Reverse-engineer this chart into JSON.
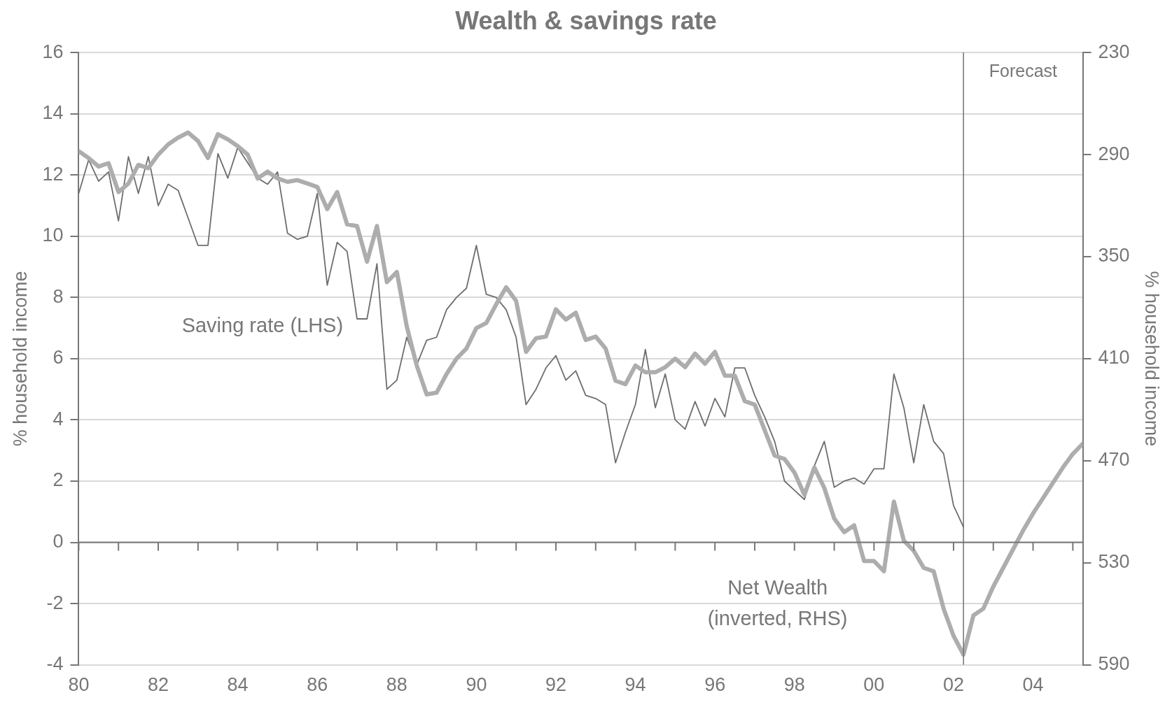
{
  "chart_data": {
    "type": "line",
    "title": "Wealth & savings rate",
    "ylabel": "% household income",
    "y2label": "% household income",
    "x": [
      1980,
      1980.25,
      1980.5,
      1980.75,
      1981,
      1981.25,
      1981.5,
      1981.75,
      1982,
      1982.25,
      1982.5,
      1982.75,
      1983,
      1983.25,
      1983.5,
      1983.75,
      1984,
      1984.25,
      1984.5,
      1984.75,
      1985,
      1985.25,
      1985.5,
      1985.75,
      1986,
      1986.25,
      1986.5,
      1986.75,
      1987,
      1987.25,
      1987.5,
      1987.75,
      1988,
      1988.25,
      1988.5,
      1988.75,
      1989,
      1989.25,
      1989.5,
      1989.75,
      1990,
      1990.25,
      1990.5,
      1990.75,
      1991,
      1991.25,
      1991.5,
      1991.75,
      1992,
      1992.25,
      1992.5,
      1992.75,
      1993,
      1993.25,
      1993.5,
      1993.75,
      1994,
      1994.25,
      1994.5,
      1994.75,
      1995,
      1995.25,
      1995.5,
      1995.75,
      1996,
      1996.25,
      1996.5,
      1996.75,
      1997,
      1997.25,
      1997.5,
      1997.75,
      1998,
      1998.25,
      1998.5,
      1998.75,
      1999,
      1999.25,
      1999.5,
      1999.75,
      2000,
      2000.25,
      2000.5,
      2000.75,
      2001,
      2001.25,
      2001.5,
      2001.75,
      2002,
      2002.25,
      2002.5,
      2002.75,
      2003,
      2003.25,
      2003.5,
      2003.75,
      2004,
      2004.25,
      2004.5,
      2004.75,
      2005,
      2005.25
    ],
    "series": [
      {
        "name": "Saving rate (LHS)",
        "color": "#6e6e6e",
        "values": [
          11.4,
          12.5,
          11.8,
          12.1,
          10.5,
          12.6,
          11.4,
          12.6,
          11.0,
          11.7,
          11.5,
          10.6,
          9.7,
          9.7,
          12.7,
          11.9,
          12.9,
          12.4,
          11.9,
          11.7,
          12.1,
          10.1,
          9.9,
          10.0,
          11.4,
          8.4,
          9.8,
          9.5,
          7.3,
          7.3,
          9.1,
          5.0,
          5.3,
          6.7,
          5.8,
          6.6,
          6.7,
          7.6,
          8.0,
          8.3,
          9.7,
          8.1,
          8.0,
          7.6,
          6.7,
          4.5,
          5.0,
          5.7,
          6.1,
          5.3,
          5.6,
          4.8,
          4.7,
          4.5,
          2.6,
          3.6,
          4.5,
          6.3,
          4.4,
          5.5,
          4.0,
          3.7,
          4.6,
          3.8,
          4.7,
          4.1,
          5.7,
          5.7,
          4.8,
          4.1,
          3.3,
          2.0,
          1.7,
          1.4,
          2.5,
          3.3,
          1.8,
          2.0,
          2.1,
          1.9,
          2.4,
          2.4,
          5.5,
          4.4,
          2.6,
          4.5,
          3.3,
          2.9,
          1.2,
          0.5,
          null,
          null,
          null,
          null,
          null,
          null,
          null,
          null,
          null,
          null,
          null,
          null
        ]
      },
      {
        "name": "Net Wealth (inverted, RHS)",
        "color": "#adadad",
        "axis": "y2",
        "values": [
          288,
          292,
          297,
          295,
          312,
          307,
          296,
          298,
          290,
          284,
          280,
          277,
          282,
          292,
          278,
          281,
          285,
          290,
          304,
          300,
          304,
          306,
          305,
          307,
          309,
          322,
          312,
          331,
          332,
          353,
          332,
          365,
          359,
          391,
          414,
          431,
          430,
          419,
          410,
          404,
          392,
          389,
          378,
          368,
          376,
          406,
          398,
          397,
          381,
          387,
          383,
          399,
          397,
          404,
          423,
          425,
          414,
          418,
          418,
          415,
          410,
          415,
          407,
          413,
          406,
          420,
          420,
          435,
          437,
          452,
          467,
          469,
          477,
          490,
          474,
          486,
          504,
          512,
          508,
          529,
          529,
          535,
          494,
          517,
          523,
          533,
          535,
          557,
          573,
          584,
          561,
          557,
          544,
          533,
          522,
          511,
          501,
          492,
          483,
          474,
          466,
          460
        ]
      }
    ],
    "xlim": [
      1980,
      2005.25
    ],
    "xticks": [
      {
        "value": 1980,
        "label": "80"
      },
      {
        "value": 1981,
        "label": null
      },
      {
        "value": 1982,
        "label": "82"
      },
      {
        "value": 1983,
        "label": null
      },
      {
        "value": 1984,
        "label": "84"
      },
      {
        "value": 1985,
        "label": null
      },
      {
        "value": 1986,
        "label": "86"
      },
      {
        "value": 1987,
        "label": null
      },
      {
        "value": 1988,
        "label": "88"
      },
      {
        "value": 1989,
        "label": null
      },
      {
        "value": 1990,
        "label": "90"
      },
      {
        "value": 1991,
        "label": null
      },
      {
        "value": 1992,
        "label": "92"
      },
      {
        "value": 1993,
        "label": null
      },
      {
        "value": 1994,
        "label": "94"
      },
      {
        "value": 1995,
        "label": null
      },
      {
        "value": 1996,
        "label": "96"
      },
      {
        "value": 1997,
        "label": null
      },
      {
        "value": 1998,
        "label": "98"
      },
      {
        "value": 1999,
        "label": null
      },
      {
        "value": 2000,
        "label": "00"
      },
      {
        "value": 2001,
        "label": null
      },
      {
        "value": 2002,
        "label": "02"
      },
      {
        "value": 2003,
        "label": null
      },
      {
        "value": 2004,
        "label": "04"
      },
      {
        "value": 2005,
        "label": null
      }
    ],
    "ylim": [
      -4,
      16
    ],
    "yticks": [
      -4,
      -2,
      0,
      2,
      4,
      6,
      8,
      10,
      12,
      14,
      16
    ],
    "y2lim": [
      590,
      230
    ],
    "y2ticks": [
      230,
      290,
      350,
      410,
      470,
      530,
      590
    ],
    "ref_lines": [
      {
        "axis": "x",
        "value": 2002.25,
        "label": "Forecast",
        "color": "#707070"
      }
    ],
    "grid": "y",
    "legend": false,
    "marker": "none",
    "line_style": "solid"
  }
}
